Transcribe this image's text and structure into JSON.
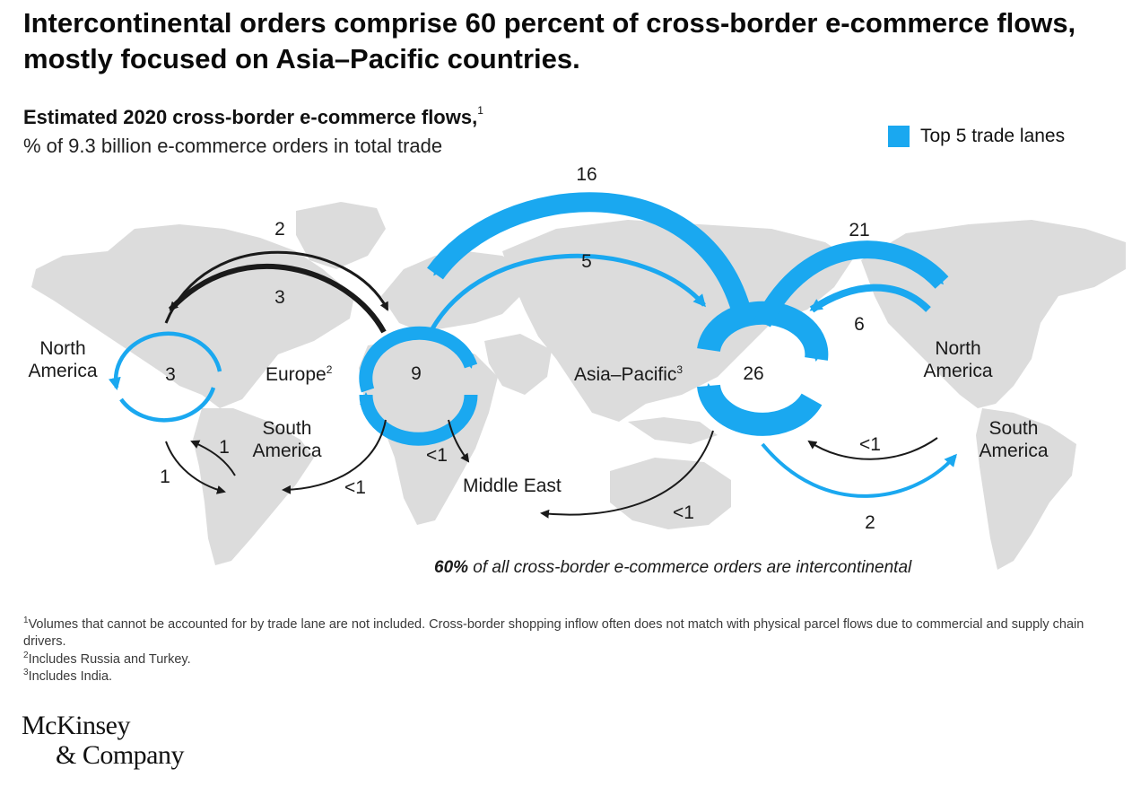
{
  "title": "Intercontinental orders comprise 60 percent of cross-border e-commerce flows, mostly focused on Asia–Pacific countries.",
  "subtitle": {
    "main": "Estimated 2020 cross-border e-commerce flows,",
    "footnote_marker": "1",
    "unit": "% of 9.3 billion e-commerce orders in total trade"
  },
  "legend": {
    "label": "Top 5 trade lanes",
    "color": "#1aa8f0"
  },
  "colors": {
    "top_lane": "#1aa8f0",
    "other_lane": "#1a1a1a",
    "land": "#dcdcdc"
  },
  "regions": {
    "north_america_left": "North America",
    "south_america_left": "South America",
    "europe": "Europe",
    "europe_marker": "2",
    "middle_east": "Middle East",
    "asia_pacific": "Asia–Pacific",
    "asia_pacific_marker": "3",
    "north_america_right": "North America",
    "south_america_right": "South America"
  },
  "flows": {
    "na_internal": "3",
    "na_to_europe": "2",
    "europe_to_na": "3",
    "na_to_sa": "1",
    "sa_to_na": "1",
    "europe_to_sa": "<1",
    "europe_internal": "9",
    "europe_to_me": "<1",
    "apac_to_europe": "16",
    "europe_to_apac": "5",
    "apac_internal": "26",
    "apac_to_na": "21",
    "na_to_apac": "6",
    "sa_to_apac": "<1",
    "apac_to_sa": "2",
    "apac_to_me": "<1"
  },
  "note": {
    "bold": "60%",
    "text": " of all cross-border e-commerce orders are intercontinental"
  },
  "footnotes": {
    "f1_marker": "1",
    "f1": "Volumes that cannot be accounted for by trade lane are not included. Cross-border shopping inflow often does not match with physical parcel flows due to commercial and supply chain drivers.",
    "f2_marker": "2",
    "f2": "Includes Russia and Turkey.",
    "f3_marker": "3",
    "f3": "Includes India."
  },
  "logo": {
    "line1": "McKinsey",
    "line2": "& Company"
  }
}
